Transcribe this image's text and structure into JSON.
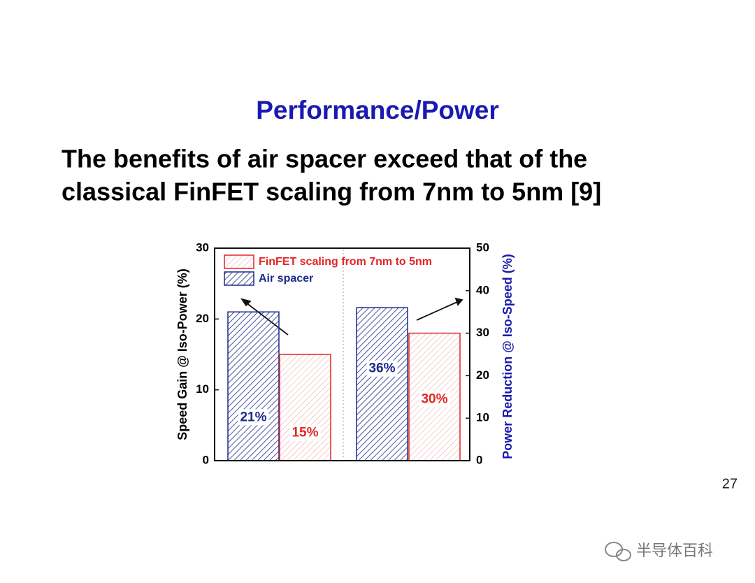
{
  "chart_data": {
    "type": "bar",
    "title": "Performance/Power",
    "subtitle": [
      "The benefits of air spacer exceed that of the",
      "classical FinFET scaling from 7nm to 5nm [9]"
    ],
    "categories": [
      null,
      null
    ],
    "axes": [
      "y",
      "y2"
    ],
    "series": [
      {
        "name": "Air spacer",
        "color": "#1c2a8a",
        "values": [
          21,
          36
        ],
        "value_labels": [
          "21%",
          "36%"
        ]
      },
      {
        "name": "FinFET scaling from 7nm to 5nm",
        "color": "#e02626",
        "values": [
          15,
          30
        ],
        "value_labels": [
          "15%",
          "30%"
        ]
      }
    ],
    "ylabel": "Speed Gain @ Iso-Power (%)",
    "y2label": "Power Reduction @ Iso-Speed (%)",
    "ylim": [
      0,
      30
    ],
    "yticks": [
      0,
      10,
      20,
      30
    ],
    "y2lim": [
      0,
      50
    ],
    "y2ticks": [
      0,
      10,
      20,
      30,
      40,
      50
    ],
    "legend": "upper left"
  },
  "page_number": "27",
  "watermark": "半导体百科"
}
